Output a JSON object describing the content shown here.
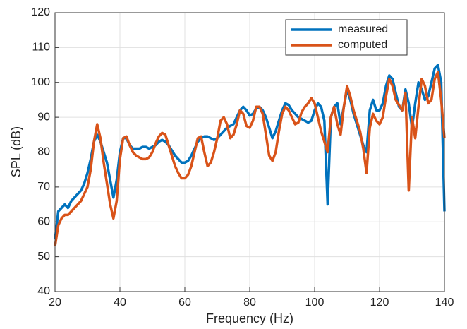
{
  "chart_data": {
    "type": "line",
    "xlabel": "Frequency (Hz)",
    "ylabel": "SPL (dB)",
    "x": [
      20,
      21,
      22,
      23,
      24,
      25,
      26,
      27,
      28,
      29,
      30,
      31,
      32,
      33,
      34,
      35,
      36,
      37,
      38,
      39,
      40,
      41,
      42,
      43,
      44,
      45,
      46,
      47,
      48,
      49,
      50,
      51,
      52,
      53,
      54,
      55,
      56,
      57,
      58,
      59,
      60,
      61,
      62,
      63,
      64,
      65,
      66,
      67,
      68,
      69,
      70,
      71,
      72,
      73,
      74,
      75,
      76,
      77,
      78,
      79,
      80,
      81,
      82,
      83,
      84,
      85,
      86,
      87,
      88,
      89,
      90,
      91,
      92,
      93,
      94,
      95,
      96,
      97,
      98,
      99,
      100,
      101,
      102,
      103,
      104,
      105,
      106,
      107,
      108,
      109,
      110,
      111,
      112,
      113,
      114,
      115,
      116,
      117,
      118,
      119,
      120,
      121,
      122,
      123,
      124,
      125,
      126,
      127,
      128,
      129,
      130,
      131,
      132,
      133,
      134,
      135,
      136,
      137,
      138,
      139,
      140
    ],
    "series": [
      {
        "name": "measured",
        "color": "#0072bd",
        "values": [
          55,
          63,
          64,
          65,
          64,
          66,
          67,
          68,
          69,
          71,
          74,
          78,
          83,
          85,
          83,
          80,
          77,
          72,
          67,
          72,
          80,
          84,
          84,
          82,
          81,
          81,
          81,
          81.5,
          81.5,
          81,
          81.5,
          82,
          83,
          83.5,
          83,
          82,
          80.5,
          79,
          78,
          77,
          77,
          77.5,
          79,
          81,
          83,
          84,
          84.5,
          84.5,
          84,
          83.5,
          84,
          85,
          86,
          87,
          87.5,
          88,
          90,
          92,
          93,
          92,
          90.5,
          91,
          92.5,
          93,
          92,
          90,
          87,
          84,
          86,
          89,
          92,
          94,
          93.5,
          92,
          91,
          90,
          89.5,
          89,
          88.5,
          89,
          92,
          94,
          93,
          89,
          65,
          90,
          93,
          94,
          88,
          93,
          98,
          95,
          91,
          88,
          85,
          82,
          80,
          92,
          95,
          92,
          92,
          94,
          99,
          102,
          101,
          97,
          93,
          92,
          98,
          94,
          87,
          94,
          100,
          98,
          95,
          96,
          100,
          104,
          105,
          100,
          63
        ]
      },
      {
        "name": "computed",
        "color": "#d95319",
        "values": [
          53,
          59,
          61,
          62,
          62,
          63,
          64,
          65,
          66,
          68,
          70,
          75,
          83,
          88,
          84,
          77,
          71,
          65,
          61,
          66,
          78,
          84,
          84.5,
          82,
          80,
          79,
          78.5,
          78,
          78,
          78.5,
          80,
          82.5,
          84.5,
          85.5,
          85,
          82,
          79,
          76,
          74,
          72.5,
          72.5,
          73.5,
          76,
          80,
          84,
          84.5,
          80,
          76,
          77,
          80,
          84,
          89,
          90,
          88,
          84,
          85,
          88,
          92,
          91,
          87.5,
          87,
          89,
          93,
          93,
          91,
          85,
          79,
          77.5,
          80,
          86,
          91,
          93,
          92,
          90,
          88,
          88.5,
          91.5,
          93,
          94,
          95.5,
          94,
          90,
          86,
          83,
          80,
          90,
          93,
          88,
          85,
          93,
          99,
          96,
          92,
          89,
          86,
          81,
          74,
          87,
          91,
          89,
          88,
          90,
          96,
          101,
          99,
          95,
          93.5,
          92,
          97,
          69,
          90,
          84,
          93,
          101,
          99,
          94,
          95,
          101,
          103,
          95,
          84
        ]
      }
    ],
    "xlim": [
      20,
      140
    ],
    "ylim": [
      40,
      120
    ],
    "xticks": [
      20,
      40,
      60,
      80,
      100,
      120,
      140
    ],
    "yticks": [
      40,
      50,
      60,
      70,
      80,
      90,
      100,
      110,
      120
    ],
    "grid": true,
    "legend": "northeast"
  }
}
